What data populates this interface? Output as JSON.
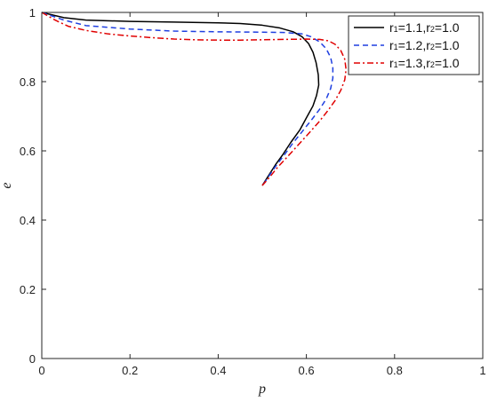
{
  "chart_data": {
    "type": "line",
    "title": "",
    "xlabel": "p",
    "ylabel": "e",
    "xlim": [
      0,
      1
    ],
    "ylim": [
      0,
      1
    ],
    "xticks": [
      "0",
      "0.2",
      "0.4",
      "0.6",
      "0.8",
      "1"
    ],
    "yticks": [
      "0",
      "0.2",
      "0.4",
      "0.6",
      "0.8",
      "1"
    ],
    "grid": false,
    "legend_position": "top-right",
    "series": [
      {
        "name": "r1=1.1,r2=1.0",
        "legend": {
          "p1": "r",
          "s1": "1",
          "p2": "=1.1,r",
          "s2": "2",
          "p3": "=1.0"
        },
        "color": "#000000",
        "style": "solid",
        "points": [
          [
            0,
            1
          ],
          [
            0.05,
            0.985
          ],
          [
            0.1,
            0.978
          ],
          [
            0.2,
            0.974
          ],
          [
            0.3,
            0.972
          ],
          [
            0.4,
            0.97
          ],
          [
            0.45,
            0.968
          ],
          [
            0.5,
            0.963
          ],
          [
            0.54,
            0.955
          ],
          [
            0.57,
            0.944
          ],
          [
            0.59,
            0.93
          ],
          [
            0.605,
            0.91
          ],
          [
            0.615,
            0.885
          ],
          [
            0.622,
            0.855
          ],
          [
            0.627,
            0.82
          ],
          [
            0.628,
            0.79
          ],
          [
            0.623,
            0.76
          ],
          [
            0.615,
            0.73
          ],
          [
            0.602,
            0.7
          ],
          [
            0.585,
            0.66
          ],
          [
            0.565,
            0.625
          ],
          [
            0.547,
            0.59
          ],
          [
            0.53,
            0.56
          ],
          [
            0.515,
            0.53
          ],
          [
            0.505,
            0.51
          ],
          [
            0.5,
            0.5
          ]
        ]
      },
      {
        "name": "r1=1.2,r2=1.0",
        "legend": {
          "p1": "r",
          "s1": "1",
          "p2": "=1.2,r",
          "s2": "2",
          "p3": "=1.0"
        },
        "color": "#1f3fe0",
        "style": "dashed",
        "points": [
          [
            0,
            1
          ],
          [
            0.05,
            0.978
          ],
          [
            0.1,
            0.962
          ],
          [
            0.2,
            0.952
          ],
          [
            0.3,
            0.946
          ],
          [
            0.4,
            0.944
          ],
          [
            0.5,
            0.943
          ],
          [
            0.55,
            0.942
          ],
          [
            0.59,
            0.938
          ],
          [
            0.61,
            0.93
          ],
          [
            0.63,
            0.915
          ],
          [
            0.645,
            0.895
          ],
          [
            0.655,
            0.87
          ],
          [
            0.66,
            0.84
          ],
          [
            0.66,
            0.81
          ],
          [
            0.655,
            0.78
          ],
          [
            0.645,
            0.75
          ],
          [
            0.63,
            0.72
          ],
          [
            0.612,
            0.69
          ],
          [
            0.59,
            0.655
          ],
          [
            0.568,
            0.62
          ],
          [
            0.548,
            0.585
          ],
          [
            0.53,
            0.555
          ],
          [
            0.515,
            0.527
          ],
          [
            0.505,
            0.508
          ],
          [
            0.5,
            0.5
          ]
        ]
      },
      {
        "name": "r1=1.3,r2=1.0",
        "legend": {
          "p1": "r",
          "s1": "1",
          "p2": "=1.3,r",
          "s2": "2",
          "p3": "=1.0"
        },
        "color": "#e00000",
        "style": "dashdot",
        "points": [
          [
            0,
            1
          ],
          [
            0.03,
            0.978
          ],
          [
            0.06,
            0.96
          ],
          [
            0.1,
            0.948
          ],
          [
            0.15,
            0.938
          ],
          [
            0.2,
            0.932
          ],
          [
            0.25,
            0.927
          ],
          [
            0.3,
            0.923
          ],
          [
            0.35,
            0.921
          ],
          [
            0.4,
            0.92
          ],
          [
            0.45,
            0.92
          ],
          [
            0.5,
            0.921
          ],
          [
            0.55,
            0.922
          ],
          [
            0.6,
            0.923
          ],
          [
            0.63,
            0.922
          ],
          [
            0.65,
            0.918
          ],
          [
            0.665,
            0.908
          ],
          [
            0.678,
            0.89
          ],
          [
            0.687,
            0.865
          ],
          [
            0.69,
            0.835
          ],
          [
            0.687,
            0.805
          ],
          [
            0.678,
            0.775
          ],
          [
            0.665,
            0.745
          ],
          [
            0.648,
            0.715
          ],
          [
            0.628,
            0.683
          ],
          [
            0.605,
            0.65
          ],
          [
            0.58,
            0.615
          ],
          [
            0.555,
            0.58
          ],
          [
            0.535,
            0.553
          ],
          [
            0.518,
            0.526
          ],
          [
            0.507,
            0.51
          ],
          [
            0.5,
            0.5
          ]
        ]
      }
    ]
  }
}
